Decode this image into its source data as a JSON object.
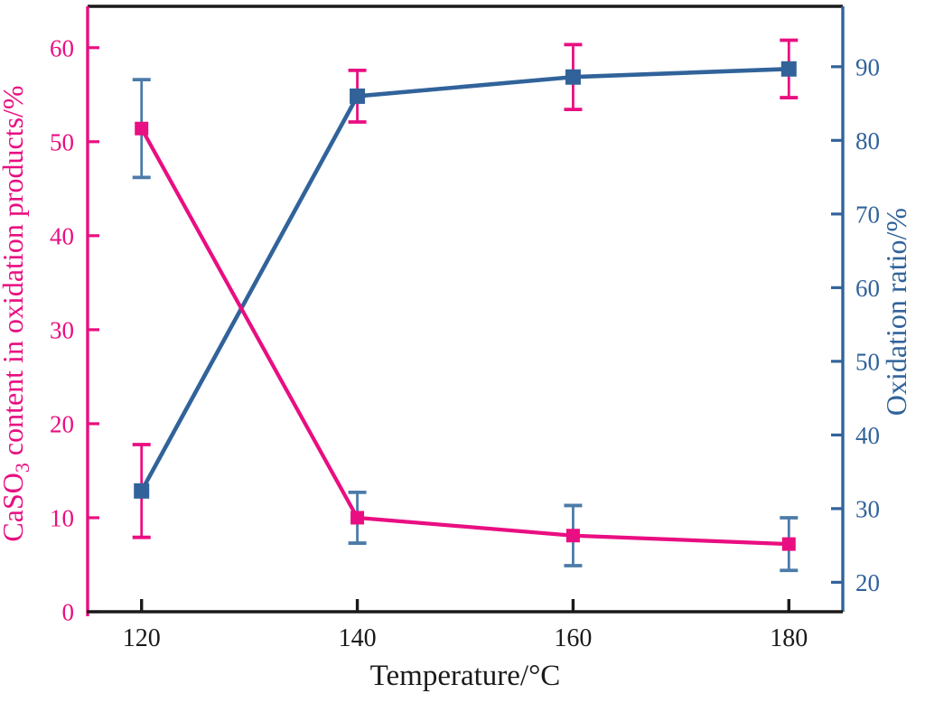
{
  "figure": {
    "background": "#ffffff"
  },
  "chart_data": {
    "type": "line",
    "title": "",
    "grid": false,
    "legend": null,
    "x": [
      120,
      140,
      160,
      180
    ],
    "x_axis": {
      "label": "Temperature/°C",
      "ticks": [
        120,
        140,
        160,
        180
      ],
      "lim": [
        115,
        185
      ],
      "color": "#1a1a1a"
    },
    "left_axis": {
      "label": "CaSO3 content in oxidation products/%",
      "label_segments": [
        {
          "text": "CaSO",
          "sub": false
        },
        {
          "text": "3",
          "sub": true
        },
        {
          "text": " content in oxidation products/%",
          "sub": false
        }
      ],
      "ticks": [
        0,
        10,
        20,
        30,
        40,
        50,
        60
      ],
      "lim": [
        0,
        64.4
      ],
      "color": "#e90e81"
    },
    "right_axis": {
      "label": "Oxidation ratio/%",
      "ticks": [
        20,
        30,
        40,
        50,
        60,
        70,
        80,
        90
      ],
      "lim": [
        16,
        98.2
      ],
      "color": "#31639a"
    },
    "series": [
      {
        "name": "CaSO3 content in oxidation products",
        "axis": "left",
        "values": [
          51.4,
          10.0,
          8.1,
          7.2
        ],
        "errors": [
          5.2,
          2.7,
          3.2,
          2.8
        ],
        "color": "#e90e81",
        "error_color": "#4c7ba8",
        "marker": "square",
        "marker_size": 15,
        "line_width": 4.2
      },
      {
        "name": "Oxidation ratio",
        "axis": "right",
        "values": [
          32.4,
          86.0,
          88.6,
          89.7
        ],
        "errors": [
          6.3,
          3.5,
          4.4,
          3.9
        ],
        "color": "#31639a",
        "error_color": "#e90e81",
        "marker": "square",
        "marker_size": 17,
        "line_width": 4.6
      }
    ]
  }
}
